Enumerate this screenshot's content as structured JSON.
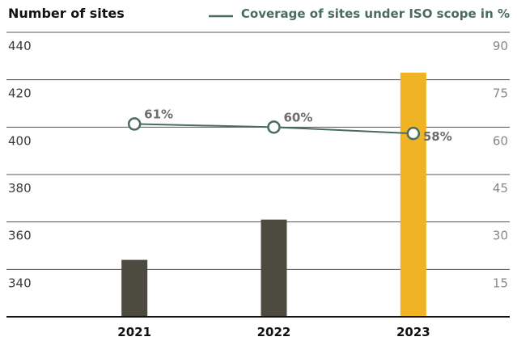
{
  "chart_data": {
    "type": "bar",
    "categories": [
      "2021",
      "2022",
      "2023"
    ],
    "series": [
      {
        "name": "Number of sites",
        "values": [
          344,
          361,
          423
        ],
        "colors": [
          "#4d4a3f",
          "#4d4a3f",
          "#f0b323"
        ]
      },
      {
        "name": "Coverage of sites under ISO scope in %",
        "type": "line",
        "axis": "y2",
        "color": "#4a6b5f",
        "values": [
          61,
          60,
          58
        ],
        "value_labels": [
          "61%",
          "60%",
          "58%"
        ]
      }
    ],
    "ylim": [
      320,
      440
    ],
    "yticks": [
      340,
      360,
      380,
      400,
      420,
      440
    ],
    "y2lim": [
      0,
      90
    ],
    "y2ticks": [
      15,
      30,
      45,
      60,
      75,
      90
    ],
    "grid": true
  }
}
